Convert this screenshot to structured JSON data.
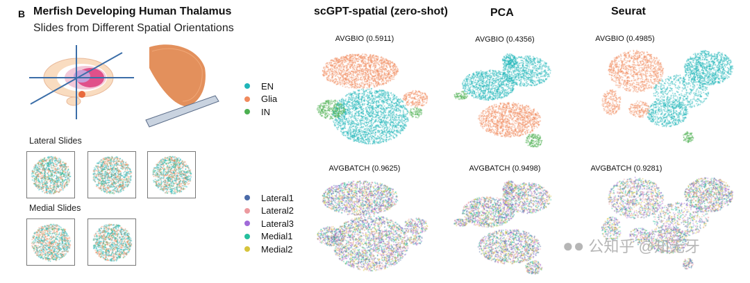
{
  "figure": {
    "panel_letter": "B",
    "title": "Merfish Developing Human Thalamus",
    "subtitle": "Slides from Different Spatial Orientations",
    "lateral_label": "Lateral Slides",
    "medial_label": "Medial Slides"
  },
  "columns": [
    {
      "title": "scGPT-spatial (zero-shot)",
      "bio": "AVGBIO (0.5911)",
      "batch": "AVGBATCH (0.9625)"
    },
    {
      "title": "PCA",
      "bio": "AVGBIO (0.4356)",
      "batch": "AVGBATCH (0.9498)"
    },
    {
      "title": "Seurat",
      "bio": "AVGBIO (0.4985)",
      "batch": "AVGBATCH (0.9281)"
    }
  ],
  "celltype_legend": [
    {
      "label": "EN",
      "color": "#1fb5b8"
    },
    {
      "label": "Glia",
      "color": "#f08a5d"
    },
    {
      "label": "IN",
      "color": "#4caf50"
    }
  ],
  "batch_legend": [
    {
      "label": "Lateral1",
      "color": "#4a6aa8"
    },
    {
      "label": "Lateral2",
      "color": "#ec9a9f"
    },
    {
      "label": "Lateral3",
      "color": "#a06ad8"
    },
    {
      "label": "Medial1",
      "color": "#25bf9d"
    },
    {
      "label": "Medial2",
      "color": "#d6c43c"
    }
  ],
  "watermark": "公知乎 @知无牙"
}
